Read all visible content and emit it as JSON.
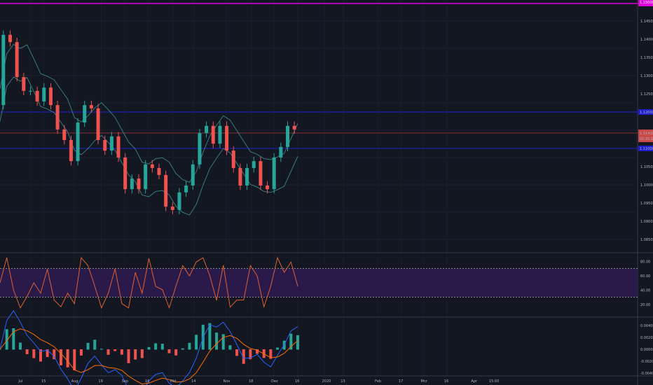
{
  "chart_data": {
    "type": "candlestick",
    "symbol_lines": {
      "top_label": "1.15000",
      "upper": "1.12000",
      "lower": "1.11000",
      "current": "1.11420",
      "countdown": "02:31:11"
    },
    "closes": [
      1.1219,
      1.1412,
      1.1392,
      1.1296,
      1.1258,
      1.1258,
      1.1229,
      1.1267,
      1.1219,
      1.1152,
      1.1123,
      1.1065,
      1.1171,
      1.1219,
      1.121,
      1.1123,
      1.1094,
      1.1133,
      1.1075,
      1.0988,
      1.1017,
      1.0988,
      1.1056,
      1.1046,
      1.1027,
      1.094,
      1.0931,
      1.0979,
      1.0998,
      1.1056,
      1.1142,
      1.1162,
      1.1113,
      1.1162,
      1.1094,
      1.1046,
      1.0998,
      1.1046,
      1.1065,
      1.0998,
      1.0988,
      1.1075,
      1.1104,
      1.1162,
      1.1152
    ],
    "price_ticks": [
      "1.14500",
      "1.14000",
      "1.13500",
      "1.13000",
      "1.12500",
      "1.10500",
      "1.10000",
      "1.09500",
      "1.09000",
      "1.08500"
    ],
    "ylim": [
      1.085,
      1.145
    ],
    "rsi": {
      "ticks": [
        "80.00",
        "60.00",
        "40.00",
        "20.00"
      ],
      "upper_band": 70,
      "lower_band": 30
    },
    "macd": {
      "ticks": [
        "0.00400",
        "0.00200",
        "0.00000",
        "-0.00200",
        "-0.00400"
      ]
    },
    "x_ticks": [
      "Jul",
      "15",
      "Aug",
      "19",
      "Sep",
      "16",
      "Okt",
      "14",
      "Nov",
      "18",
      "Dez",
      "16",
      "2020",
      "13",
      "Feb",
      "17",
      "Mrz",
      "16",
      "Apr",
      "15:00"
    ],
    "colors": {
      "up": "#26a69a",
      "down": "#ef5350",
      "band": "#3a7a7a",
      "rsi_fill": "#2a1a4a",
      "level": "#1f1fd0",
      "top": "#e000e0"
    }
  }
}
